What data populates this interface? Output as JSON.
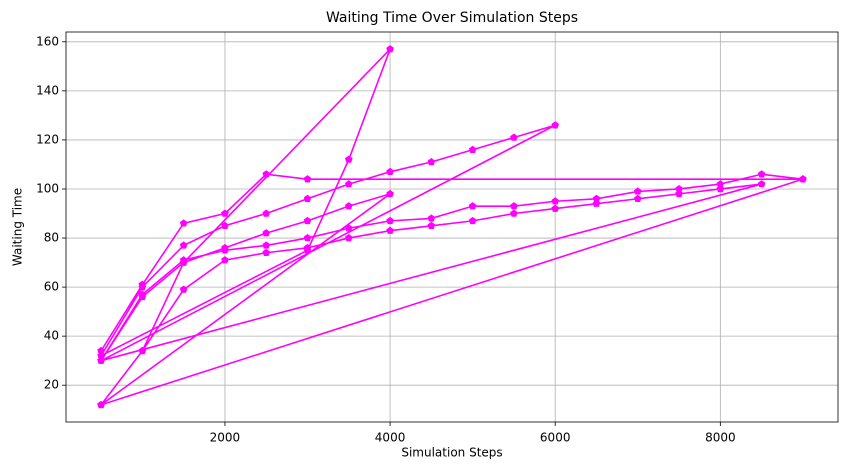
{
  "chart_data": {
    "type": "line",
    "title": "Waiting Time Over Simulation Steps",
    "x_label": "Simulation Steps",
    "y_label": "Waiting Time",
    "x": [
      500,
      1000,
      1500,
      2000,
      2500,
      3000,
      9000,
      500,
      1000,
      1500,
      2000,
      2500,
      3000,
      3500,
      4000,
      4500,
      5000,
      5500,
      6000,
      6500,
      7000,
      7500,
      8000,
      8500,
      500,
      1000,
      1500,
      2000,
      2500,
      3000,
      3500,
      4000,
      500,
      1000,
      1500,
      4000,
      3500,
      3000,
      500,
      1000,
      1500,
      2000,
      2500,
      3000,
      3500,
      4000,
      4500,
      5000,
      5500,
      6000,
      500,
      1000,
      1500,
      2000,
      2500,
      3000,
      3500,
      4000,
      4500,
      5000,
      5500,
      6000,
      6500,
      7000,
      7500,
      8000,
      8500,
      9000
    ],
    "series": [
      {
        "name": "Waiting Time",
        "color": "#ff00ff",
        "values": [
          34,
          61,
          86,
          90,
          106,
          104,
          104,
          12,
          34,
          59,
          71,
          74,
          76,
          80,
          83,
          85,
          87,
          90,
          92,
          94,
          96,
          98,
          100,
          102,
          30,
          56,
          70,
          76,
          82,
          87,
          93,
          98,
          12,
          34,
          70,
          157,
          112,
          75,
          32,
          60,
          77,
          85,
          90,
          96,
          102,
          107,
          111,
          116,
          121,
          126,
          30,
          57,
          71,
          75,
          77,
          80,
          84,
          87,
          88,
          93,
          93,
          95,
          96,
          99,
          100,
          102,
          106,
          104
        ]
      }
    ],
    "xlim": [
      75,
      9425
    ],
    "ylim": [
      5,
      164
    ],
    "xticks": [
      2000,
      4000,
      6000,
      8000
    ],
    "yticks": [
      20,
      40,
      60,
      80,
      100,
      120,
      140,
      160
    ],
    "grid": true
  }
}
